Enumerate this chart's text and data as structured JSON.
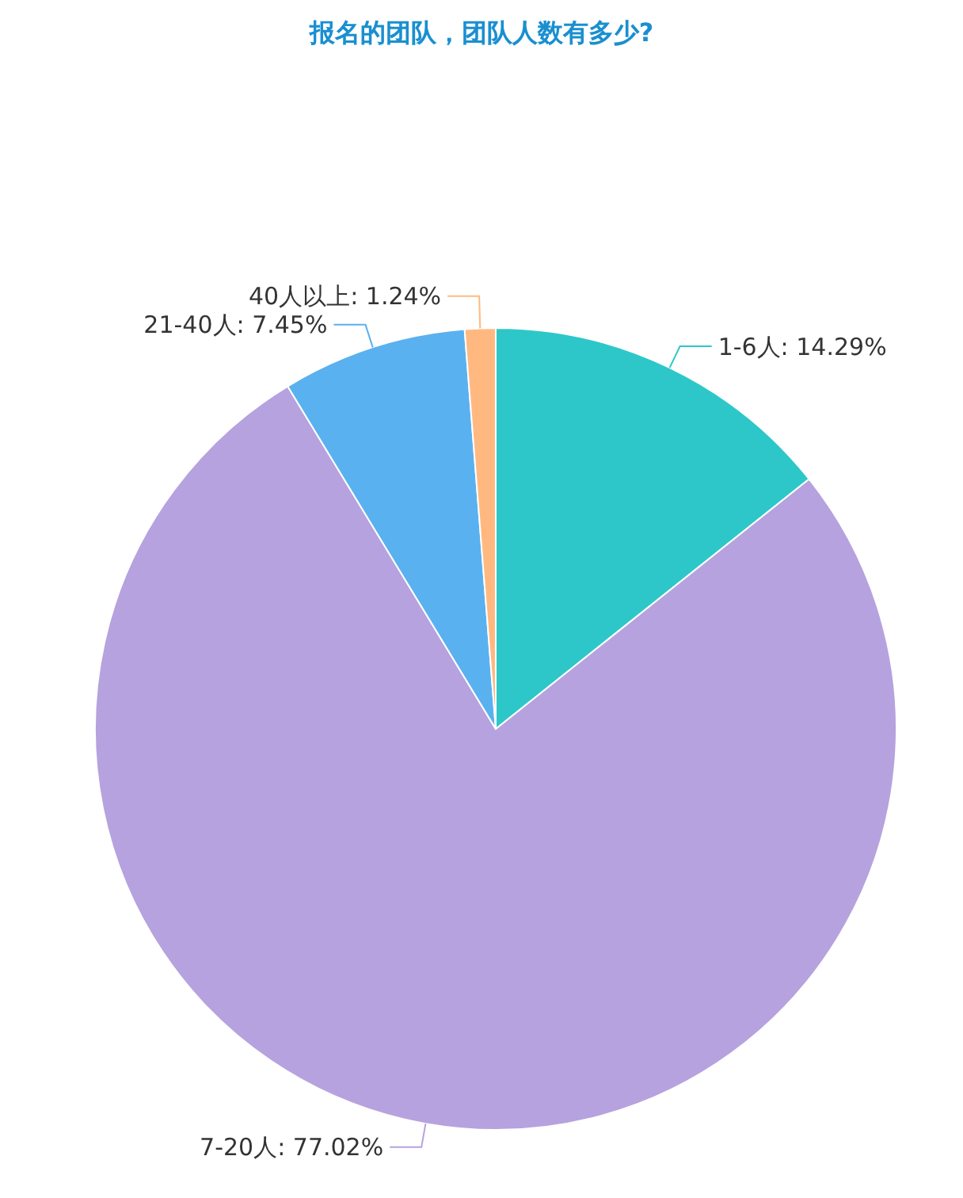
{
  "chart_data": {
    "type": "pie",
    "title": "报名的团队，团队人数有多少?",
    "categories": [
      "1-6人",
      "7-20人",
      "21-40人",
      "40人以上"
    ],
    "values": [
      14.29,
      77.02,
      7.45,
      1.24
    ],
    "value_labels": [
      "14.29%",
      "77.02%",
      "7.45%",
      "1.24%"
    ],
    "colors": [
      "#2ec7c9",
      "#b6a2de",
      "#5ab1ef",
      "#ffb980"
    ]
  }
}
